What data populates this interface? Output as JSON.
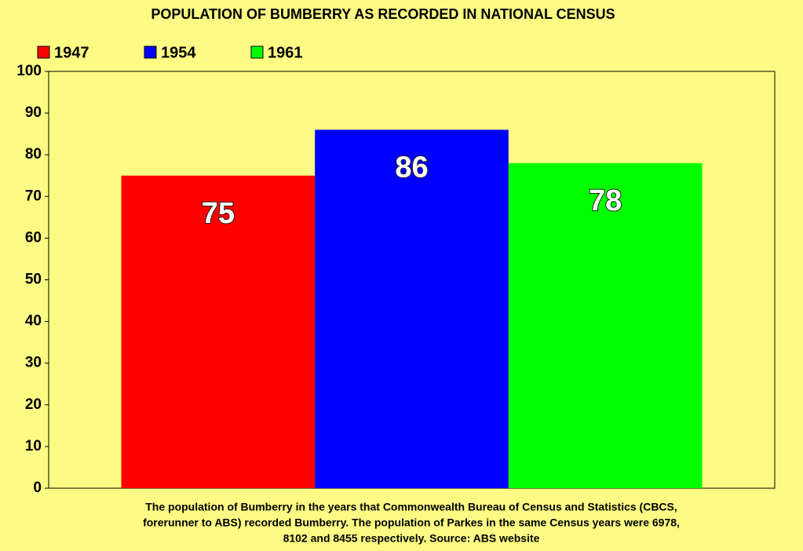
{
  "chart_data": {
    "type": "bar",
    "title": "POPULATION OF BUMBERRY AS RECORDED IN NATIONAL CENSUS",
    "categories": [
      null
    ],
    "series": [
      {
        "name": "1947",
        "color": "#ff0000",
        "values": [
          75
        ]
      },
      {
        "name": "1954",
        "color": "#0000ff",
        "values": [
          86
        ]
      },
      {
        "name": "1961",
        "color": "#00ff00",
        "values": [
          78
        ]
      }
    ],
    "ylim": [
      0,
      100
    ],
    "yticks": [
      0,
      10,
      20,
      30,
      40,
      50,
      60,
      70,
      80,
      90,
      100
    ],
    "grid": false,
    "legend": "top-left",
    "caption": [
      "The population of Bumberry in the years that Commonwealth Bureau of Census and Statistics (CBCS,",
      "forerunner to ABS) recorded Bumberry. The population of Parkes in the same Census years were 6978,",
      "8102 and 8455 respectively. Source: ABS website"
    ]
  }
}
